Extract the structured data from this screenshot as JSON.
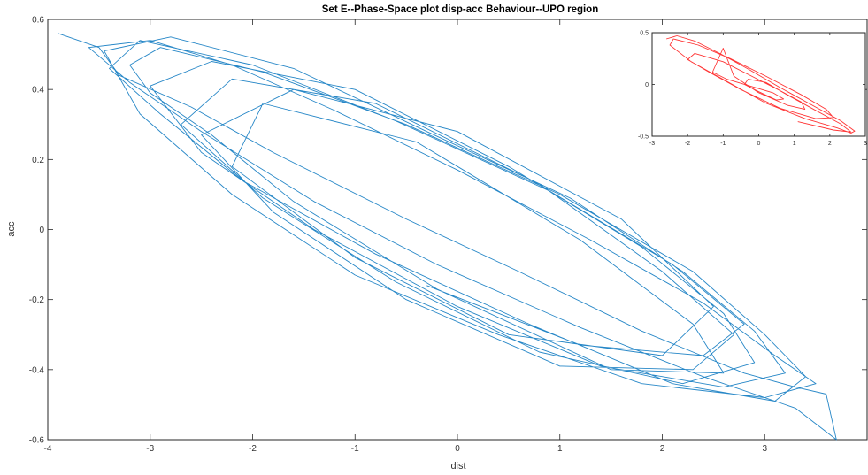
{
  "chart_data": [
    {
      "type": "line",
      "role": "main",
      "title": "Set E--Phase-Space plot disp-acc Behaviour--UPO region",
      "xlabel": "dist",
      "ylabel": "acc",
      "xlim": [
        -4,
        4
      ],
      "ylim": [
        -0.6,
        0.6
      ],
      "xticks": [
        -4,
        -3,
        -2,
        -1,
        0,
        1,
        2,
        3
      ],
      "xtick_labels": [
        "-4",
        "-3",
        "-2",
        "-1",
        "0",
        "1",
        "2",
        "3"
      ],
      "yticks": [
        -0.6,
        -0.4,
        -0.2,
        0,
        0.2,
        0.4,
        0.6
      ],
      "ytick_labels": [
        "-0.6",
        "-0.4",
        "-0.2",
        "0",
        "0.2",
        "0.4",
        "0.6"
      ],
      "grid": false,
      "color": "#0072BD",
      "series": [
        {
          "x": [
            -3.9,
            -3.5,
            -3.3,
            -2.6,
            -1.8,
            -0.5,
            0.6,
            1.8,
            2.8,
            3.3,
            3.6,
            3.7,
            3.3,
            2.4,
            1.2,
            -0.2,
            -1.4,
            -2.5,
            -3.2,
            -3.6,
            -3.0,
            -2.2,
            -1.2,
            0.0,
            1.3,
            2.4,
            3.1,
            3.5,
            3.0,
            1.8,
            0.4,
            -1.0,
            -2.2,
            -3.1,
            -3.45,
            -2.8,
            -1.6,
            -0.3,
            1.1,
            2.2,
            2.9,
            3.2,
            2.6,
            1.4,
            0.0,
            -1.4,
            -2.5,
            -3.0,
            -2.4,
            -1.0,
            0.5,
            1.8,
            2.6,
            2.9,
            2.2,
            0.8,
            -0.6,
            -1.9,
            -2.7,
            -2.2,
            -0.8,
            0.8,
            2.0,
            2.7,
            2.3,
            1.0,
            -0.5,
            -1.8,
            -2.5,
            -1.6,
            0.0,
            1.6,
            2.5,
            2.0,
            0.5,
            -1.0,
            -2.2,
            -1.9,
            -0.4,
            1.2,
            2.3,
            2.6,
            1.5,
            -0.2,
            -1.6,
            -2.4,
            -3.0,
            -3.2,
            -2.9,
            -1.9,
            -0.5,
            1.0,
            2.3,
            3.0,
            3.4,
            3.1,
            2.1,
            0.7,
            -0.8,
            -2.1,
            -2.9,
            -3.4,
            -3.1,
            -2.0,
            -0.6,
            0.9,
            2.1,
            2.8,
            2.4,
            1.2,
            -0.3
          ],
          "y": [
            0.56,
            0.52,
            0.44,
            0.35,
            0.22,
            0.03,
            -0.12,
            -0.29,
            -0.41,
            -0.45,
            -0.47,
            -0.6,
            -0.51,
            -0.42,
            -0.28,
            -0.1,
            0.08,
            0.28,
            0.42,
            0.52,
            0.54,
            0.47,
            0.34,
            0.17,
            -0.03,
            -0.21,
            -0.36,
            -0.44,
            -0.48,
            -0.44,
            -0.3,
            -0.13,
            0.1,
            0.33,
            0.51,
            0.55,
            0.46,
            0.28,
            0.09,
            -0.12,
            -0.29,
            -0.41,
            -0.45,
            -0.39,
            -0.22,
            0.0,
            0.22,
            0.41,
            0.48,
            0.4,
            0.18,
            -0.05,
            -0.24,
            -0.38,
            -0.44,
            -0.35,
            -0.15,
            0.09,
            0.3,
            0.43,
            0.36,
            0.13,
            -0.12,
            -0.3,
            -0.4,
            -0.39,
            -0.2,
            0.05,
            0.27,
            0.4,
            0.28,
            0.03,
            -0.22,
            -0.36,
            -0.3,
            -0.08,
            0.18,
            0.36,
            0.25,
            -0.03,
            -0.27,
            -0.41,
            -0.4,
            -0.17,
            0.08,
            0.27,
            0.39,
            0.47,
            0.52,
            0.45,
            0.3,
            0.1,
            -0.12,
            -0.3,
            -0.42,
            -0.49,
            -0.44,
            -0.27,
            -0.07,
            0.14,
            0.33,
            0.46,
            0.54,
            0.47,
            0.31,
            0.11,
            -0.1,
            -0.27,
            -0.36,
            -0.33,
            -0.16
          ]
        }
      ]
    },
    {
      "type": "line",
      "role": "inset",
      "xlim": [
        -3,
        3
      ],
      "ylim": [
        -0.5,
        0.5
      ],
      "xticks": [
        -3,
        -2,
        -1,
        0,
        1,
        2,
        3
      ],
      "xtick_labels": [
        "-3",
        "-2",
        "-1",
        "0",
        "1",
        "2",
        "3"
      ],
      "yticks": [
        -0.5,
        0,
        0.5
      ],
      "ytick_labels": [
        "-0.5",
        "0",
        "0.5"
      ],
      "grid": false,
      "color": "#ff2a2a",
      "series": [
        {
          "x": [
            -2.6,
            -2.3,
            -1.8,
            -1.1,
            -0.3,
            0.6,
            1.5,
            2.3,
            2.7,
            2.6,
            2.2,
            1.3,
            0.2,
            -0.9,
            -1.9,
            -2.5,
            -2.4,
            -1.7,
            -0.8,
            0.2,
            1.2,
            1.9,
            2.1,
            1.6,
            0.6,
            -0.5,
            -1.4,
            -2.0,
            -1.8,
            -1.0,
            -0.2,
            0.6,
            1.2,
            1.3,
            0.8,
            0.0,
            -0.7,
            -1.0,
            -1.3,
            -0.9,
            -0.2,
            0.4,
            0.7,
            0.5,
            0.0,
            -0.4,
            -0.3,
            0.2,
            0.8,
            1.6,
            2.3,
            2.6,
            2.1,
            1.1
          ],
          "y": [
            0.44,
            0.47,
            0.42,
            0.3,
            0.15,
            -0.03,
            -0.2,
            -0.35,
            -0.45,
            -0.47,
            -0.42,
            -0.33,
            -0.18,
            0.03,
            0.22,
            0.38,
            0.44,
            0.38,
            0.25,
            0.08,
            -0.1,
            -0.24,
            -0.32,
            -0.33,
            -0.23,
            -0.05,
            0.12,
            0.24,
            0.3,
            0.22,
            0.08,
            -0.06,
            -0.17,
            -0.24,
            -0.2,
            -0.08,
            0.08,
            0.35,
            0.12,
            0.05,
            -0.02,
            -0.08,
            -0.14,
            -0.15,
            -0.07,
            0.0,
            0.05,
            0.02,
            -0.1,
            -0.25,
            -0.38,
            -0.46,
            -0.44,
            -0.36
          ]
        }
      ]
    }
  ]
}
